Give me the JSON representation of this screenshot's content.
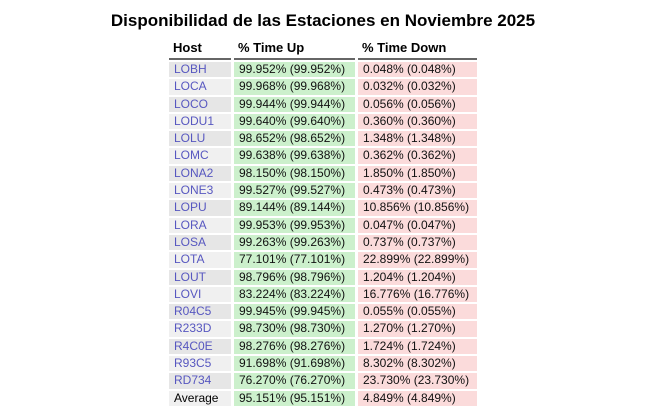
{
  "page": {
    "title": "Disponibilidad de las Estaciones en Noviembre 2025"
  },
  "table": {
    "columns": [
      "Host",
      "% Time Up",
      "% Time Down"
    ],
    "rows": [
      {
        "host": "LOBH",
        "up": "99.952% (99.952%)",
        "down": "0.048% (0.048%)",
        "is_average": false
      },
      {
        "host": "LOCA",
        "up": "99.968% (99.968%)",
        "down": "0.032% (0.032%)",
        "is_average": false
      },
      {
        "host": "LOCO",
        "up": "99.944% (99.944%)",
        "down": "0.056% (0.056%)",
        "is_average": false
      },
      {
        "host": "LODU1",
        "up": "99.640% (99.640%)",
        "down": "0.360% (0.360%)",
        "is_average": false
      },
      {
        "host": "LOLU",
        "up": "98.652% (98.652%)",
        "down": "1.348% (1.348%)",
        "is_average": false
      },
      {
        "host": "LOMC",
        "up": "99.638% (99.638%)",
        "down": "0.362% (0.362%)",
        "is_average": false
      },
      {
        "host": "LONA2",
        "up": "98.150% (98.150%)",
        "down": "1.850% (1.850%)",
        "is_average": false
      },
      {
        "host": "LONE3",
        "up": "99.527% (99.527%)",
        "down": "0.473% (0.473%)",
        "is_average": false
      },
      {
        "host": "LOPU",
        "up": "89.144% (89.144%)",
        "down": "10.856% (10.856%)",
        "is_average": false
      },
      {
        "host": "LORA",
        "up": "99.953% (99.953%)",
        "down": "0.047% (0.047%)",
        "is_average": false
      },
      {
        "host": "LOSA",
        "up": "99.263% (99.263%)",
        "down": "0.737% (0.737%)",
        "is_average": false
      },
      {
        "host": "LOTA",
        "up": "77.101% (77.101%)",
        "down": "22.899% (22.899%)",
        "is_average": false
      },
      {
        "host": "LOUT",
        "up": "98.796% (98.796%)",
        "down": "1.204% (1.204%)",
        "is_average": false
      },
      {
        "host": "LOVI",
        "up": "83.224% (83.224%)",
        "down": "16.776% (16.776%)",
        "is_average": false
      },
      {
        "host": "R04C5",
        "up": "99.945% (99.945%)",
        "down": "0.055% (0.055%)",
        "is_average": false
      },
      {
        "host": "R233D",
        "up": "98.730% (98.730%)",
        "down": "1.270% (1.270%)",
        "is_average": false
      },
      {
        "host": "R4C0E",
        "up": "98.276% (98.276%)",
        "down": "1.724% (1.724%)",
        "is_average": false
      },
      {
        "host": "R93C5",
        "up": "91.698% (91.698%)",
        "down": "8.302% (8.302%)",
        "is_average": false
      },
      {
        "host": "RD734",
        "up": "76.270% (76.270%)",
        "down": "23.730% (23.730%)",
        "is_average": false
      },
      {
        "host": "Average",
        "up": "95.151% (95.151%)",
        "down": "4.849% (4.849%)",
        "is_average": true
      }
    ],
    "colors": {
      "time_up_bg": "#ccf0cc",
      "time_down_bg": "#fbdbdb",
      "host_cell_bg_odd": "#e6e6e6",
      "host_cell_bg_even": "#f0f0f0",
      "host_link_color": "#5757c0",
      "header_rule_color": "#666666"
    }
  }
}
